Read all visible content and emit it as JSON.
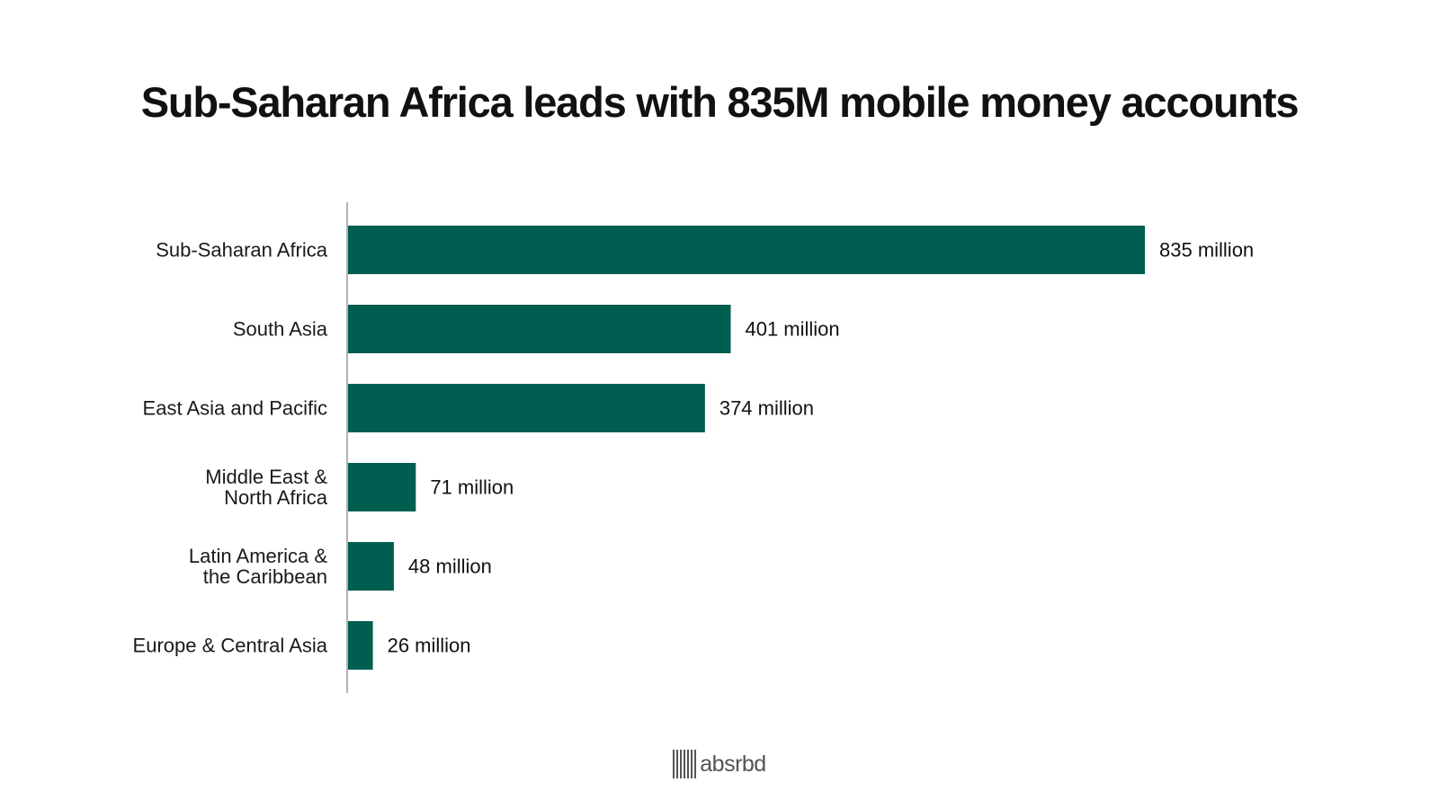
{
  "chart_data": {
    "type": "bar",
    "orientation": "horizontal",
    "title": "Sub-Saharan Africa leads with 835M mobile money accounts",
    "categories": [
      [
        "Sub-Saharan Africa"
      ],
      [
        "South Asia"
      ],
      [
        "East Asia and Pacific"
      ],
      [
        "Middle East &",
        "North Africa"
      ],
      [
        "Latin America &",
        "the Caribbean"
      ],
      [
        "Europe & Central Asia"
      ]
    ],
    "values": [
      835,
      401,
      374,
      71,
      48,
      26
    ],
    "value_labels": [
      "835 million",
      "401 million",
      "374 million",
      "71 million",
      "48 million",
      "26 million"
    ],
    "unit": "million",
    "xlim": [
      0,
      835
    ],
    "grid": false,
    "bar_color": "#005e51",
    "axis_color": "#9a9a9a"
  },
  "brand": {
    "name": "absrbd",
    "color": "#555555"
  }
}
